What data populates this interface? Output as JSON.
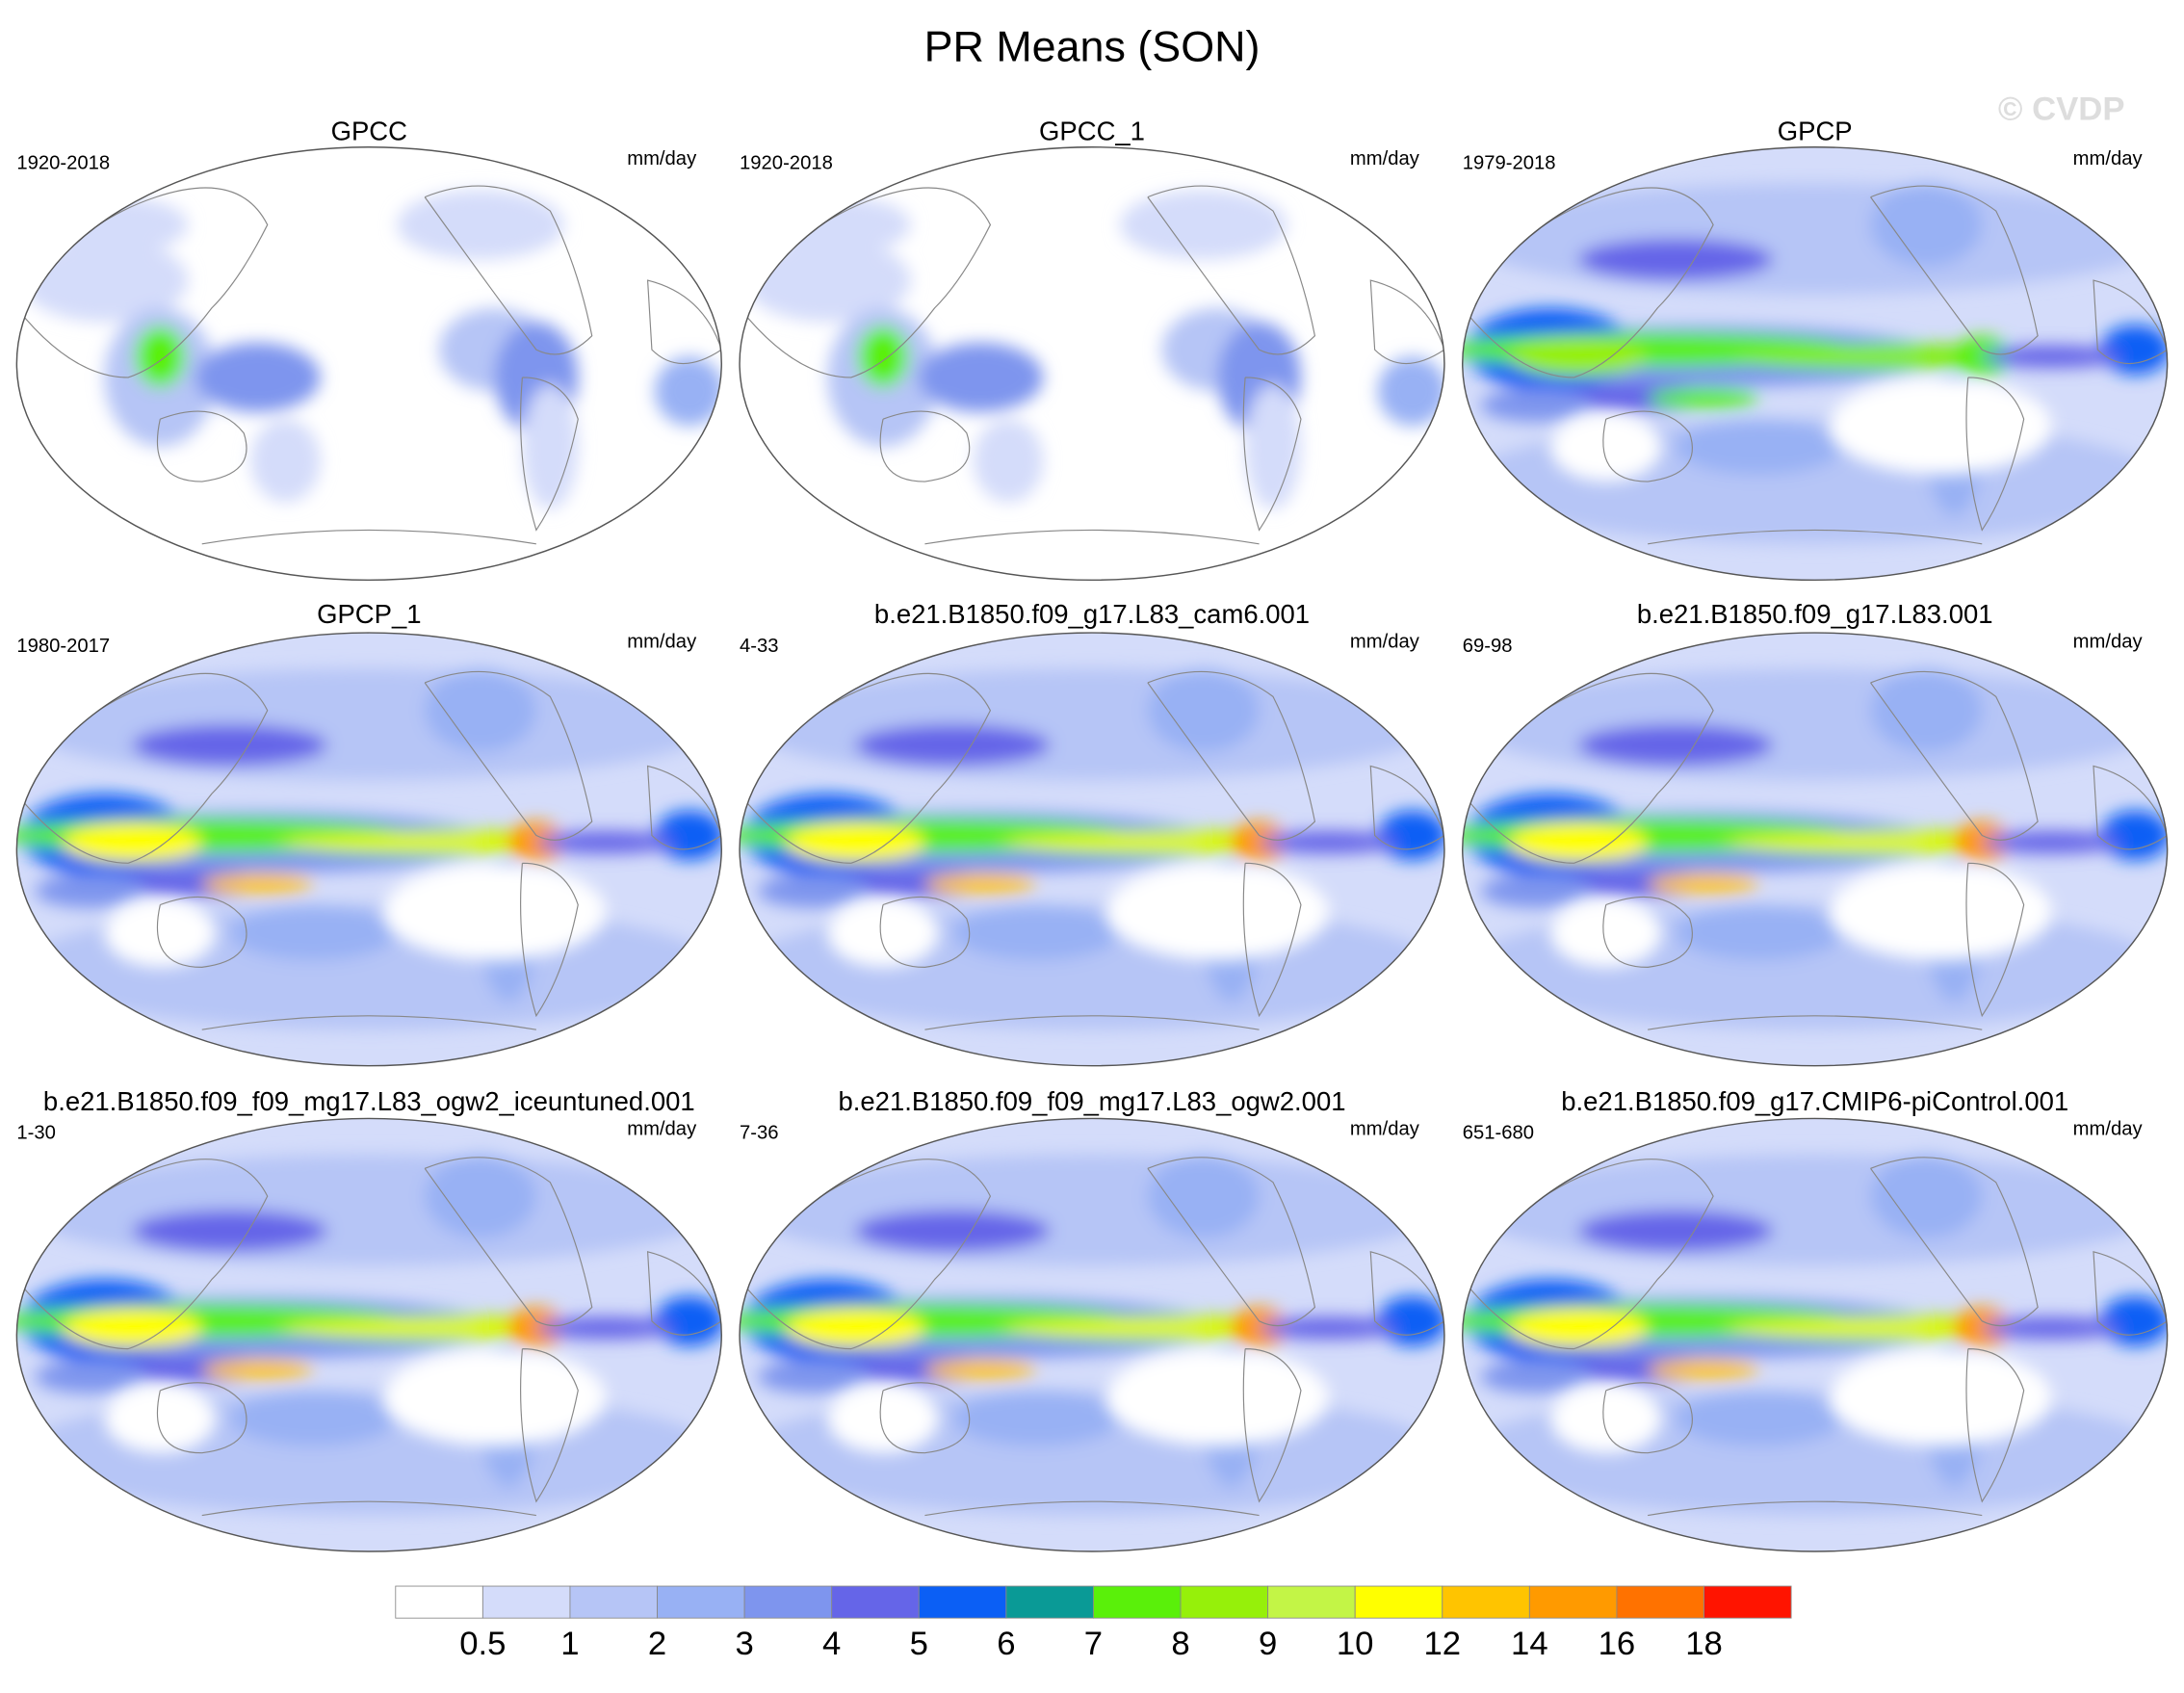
{
  "title": "PR Means (SON)",
  "copyright": "© CVDP",
  "panels": [
    {
      "name": "GPCC",
      "period": "1920-2018",
      "units": "mm/day"
    },
    {
      "name": "GPCC_1",
      "period": "1920-2018",
      "units": "mm/day"
    },
    {
      "name": "GPCP",
      "period": "1979-2018",
      "units": "mm/day"
    },
    {
      "name": "GPCP_1",
      "period": "1980-2017",
      "units": "mm/day"
    },
    {
      "name": "b.e21.B1850.f09_g17.L83_cam6.001",
      "period": "4-33",
      "units": "mm/day"
    },
    {
      "name": "b.e21.B1850.f09_g17.L83.001",
      "period": "69-98",
      "units": "mm/day"
    },
    {
      "name": "b.e21.B1850.f09_f09_mg17.L83_ogw2_iceuntuned.001",
      "period": "1-30",
      "units": "mm/day"
    },
    {
      "name": "b.e21.B1850.f09_f09_mg17.L83_ogw2.001",
      "period": "7-36",
      "units": "mm/day"
    },
    {
      "name": "b.e21.B1850.f09_g17.CMIP6-piControl.001",
      "period": "651-680",
      "units": "mm/day"
    }
  ],
  "colorbar": {
    "labels": [
      "0.5",
      "1",
      "2",
      "3",
      "4",
      "5",
      "6",
      "7",
      "8",
      "9",
      "10",
      "12",
      "14",
      "16",
      "18"
    ],
    "colors": [
      "#ffffff",
      "#d4dcfa",
      "#b6c5f6",
      "#98b1f4",
      "#7e95ee",
      "#6565e8",
      "#0b5ff5",
      "#0a9a96",
      "#5af00a",
      "#96f00a",
      "#c3f546",
      "#ffff00",
      "#ffc400",
      "#ff9a00",
      "#ff7200",
      "#ff1400"
    ]
  }
}
